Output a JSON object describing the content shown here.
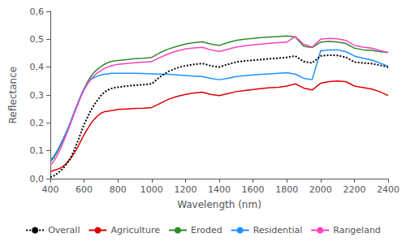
{
  "chart_data": {
    "type": "line",
    "xlabel": "Wavelength (nm)",
    "ylabel": "Reflectance",
    "x": [
      400,
      420,
      440,
      460,
      480,
      500,
      520,
      540,
      560,
      580,
      600,
      620,
      640,
      660,
      680,
      700,
      720,
      740,
      760,
      780,
      800,
      850,
      900,
      950,
      1000,
      1050,
      1100,
      1150,
      1200,
      1250,
      1300,
      1350,
      1400,
      1450,
      1500,
      1550,
      1600,
      1650,
      1700,
      1750,
      1800,
      1850,
      1900,
      1950,
      2000,
      2050,
      2100,
      2150,
      2200,
      2250,
      2300,
      2350,
      2400
    ],
    "series": [
      {
        "name": "Overall",
        "color": "#000000",
        "line_style": "dotted",
        "values": [
          0.005,
          0.01,
          0.018,
          0.028,
          0.04,
          0.055,
          0.075,
          0.1,
          0.13,
          0.163,
          0.195,
          0.22,
          0.245,
          0.265,
          0.282,
          0.298,
          0.31,
          0.318,
          0.323,
          0.326,
          0.328,
          0.332,
          0.335,
          0.337,
          0.34,
          0.365,
          0.385,
          0.397,
          0.405,
          0.41,
          0.413,
          0.405,
          0.4,
          0.41,
          0.418,
          0.422,
          0.425,
          0.427,
          0.43,
          0.432,
          0.435,
          0.44,
          0.42,
          0.415,
          0.44,
          0.443,
          0.442,
          0.435,
          0.418,
          0.415,
          0.413,
          0.407,
          0.4
        ]
      },
      {
        "name": "Agriculture",
        "color": "#dd0000",
        "line_style": "solid",
        "values": [
          0.025,
          0.03,
          0.033,
          0.038,
          0.046,
          0.058,
          0.072,
          0.09,
          0.11,
          0.135,
          0.158,
          0.178,
          0.198,
          0.213,
          0.225,
          0.235,
          0.24,
          0.242,
          0.244,
          0.246,
          0.248,
          0.25,
          0.252,
          0.253,
          0.255,
          0.27,
          0.285,
          0.295,
          0.302,
          0.307,
          0.31,
          0.302,
          0.298,
          0.305,
          0.312,
          0.316,
          0.32,
          0.323,
          0.326,
          0.328,
          0.332,
          0.34,
          0.325,
          0.318,
          0.342,
          0.348,
          0.35,
          0.348,
          0.332,
          0.327,
          0.322,
          0.312,
          0.298
        ]
      },
      {
        "name": "Eroded",
        "color": "#2e8b2e",
        "line_style": "solid",
        "values": [
          0.06,
          0.075,
          0.095,
          0.118,
          0.143,
          0.17,
          0.2,
          0.232,
          0.263,
          0.295,
          0.322,
          0.347,
          0.367,
          0.382,
          0.393,
          0.402,
          0.41,
          0.416,
          0.42,
          0.422,
          0.424,
          0.427,
          0.43,
          0.432,
          0.435,
          0.452,
          0.465,
          0.475,
          0.483,
          0.488,
          0.491,
          0.483,
          0.478,
          0.488,
          0.496,
          0.5,
          0.503,
          0.506,
          0.508,
          0.51,
          0.512,
          0.508,
          0.475,
          0.47,
          0.49,
          0.492,
          0.49,
          0.485,
          0.468,
          0.462,
          0.46,
          0.456,
          0.452
        ]
      },
      {
        "name": "Residential",
        "color": "#1E90FF",
        "line_style": "solid",
        "values": [
          0.065,
          0.08,
          0.1,
          0.123,
          0.148,
          0.175,
          0.205,
          0.238,
          0.268,
          0.298,
          0.322,
          0.34,
          0.355,
          0.363,
          0.368,
          0.372,
          0.374,
          0.376,
          0.378,
          0.378,
          0.378,
          0.378,
          0.378,
          0.377,
          0.376,
          0.375,
          0.374,
          0.372,
          0.37,
          0.368,
          0.366,
          0.36,
          0.355,
          0.36,
          0.366,
          0.369,
          0.372,
          0.374,
          0.376,
          0.378,
          0.38,
          0.375,
          0.36,
          0.355,
          0.458,
          0.462,
          0.462,
          0.455,
          0.44,
          0.432,
          0.426,
          0.415,
          0.403
        ]
      },
      {
        "name": "Rangeland",
        "color": "#FF40C0",
        "line_style": "solid",
        "values": [
          0.048,
          0.062,
          0.082,
          0.107,
          0.136,
          0.166,
          0.198,
          0.232,
          0.263,
          0.293,
          0.318,
          0.34,
          0.357,
          0.37,
          0.38,
          0.388,
          0.395,
          0.4,
          0.405,
          0.408,
          0.41,
          0.413,
          0.416,
          0.418,
          0.42,
          0.435,
          0.448,
          0.458,
          0.465,
          0.469,
          0.471,
          0.462,
          0.456,
          0.464,
          0.472,
          0.476,
          0.48,
          0.483,
          0.486,
          0.488,
          0.49,
          0.51,
          0.482,
          0.472,
          0.5,
          0.503,
          0.502,
          0.496,
          0.478,
          0.472,
          0.468,
          0.46,
          0.452
        ]
      }
    ],
    "xlim": [
      400,
      2400
    ],
    "ylim": [
      0.0,
      0.6
    ],
    "xticks": [
      400,
      600,
      800,
      1000,
      1200,
      1400,
      1600,
      1800,
      2000,
      2200,
      2400
    ],
    "yticks": [
      {
        "value": 0.0,
        "label": "0,0"
      },
      {
        "value": 0.1,
        "label": "0,1"
      },
      {
        "value": 0.2,
        "label": "0,2"
      },
      {
        "value": 0.3,
        "label": "0,3"
      },
      {
        "value": 0.4,
        "label": "0,4"
      },
      {
        "value": 0.5,
        "label": "0,5"
      },
      {
        "value": 0.6,
        "label": "0,6"
      }
    ],
    "grid": false,
    "legend": "bottom"
  }
}
